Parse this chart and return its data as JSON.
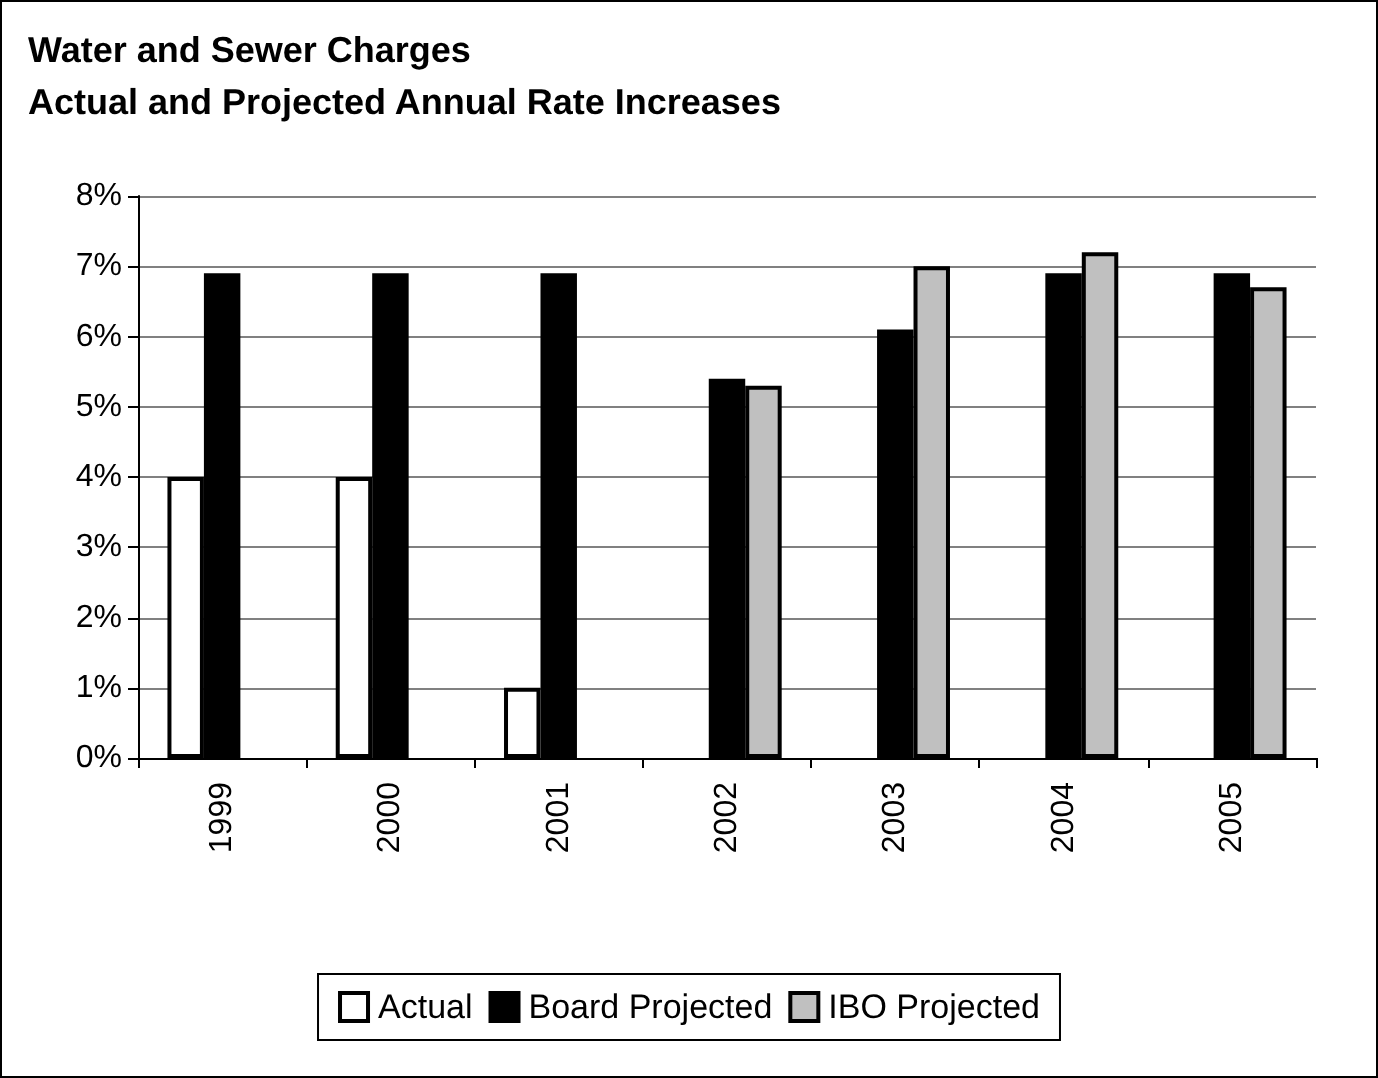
{
  "chart_data": {
    "type": "bar",
    "title": "Water and Sewer Charges\nActual and Projected Annual Rate Increases",
    "categories": [
      "1999",
      "2000",
      "2001",
      "2002",
      "2003",
      "2004",
      "2005"
    ],
    "series": [
      {
        "name": "Actual",
        "color": "#ffffff",
        "values": [
          4,
          4,
          1,
          null,
          null,
          null,
          null
        ]
      },
      {
        "name": "Board Projected",
        "color": "#000000",
        "values": [
          6.9,
          6.9,
          6.9,
          5.4,
          6.1,
          6.9,
          6.9
        ]
      },
      {
        "name": "IBO Projected",
        "color": "#c0c0c0",
        "values": [
          null,
          null,
          null,
          5.3,
          7.0,
          7.2,
          6.7
        ]
      }
    ],
    "ylim": [
      0,
      8
    ],
    "yticks": [
      {
        "value": 0,
        "label": "0%"
      },
      {
        "value": 1,
        "label": "1%"
      },
      {
        "value": 2,
        "label": "2%"
      },
      {
        "value": 3,
        "label": "3%"
      },
      {
        "value": 4,
        "label": "4%"
      },
      {
        "value": 5,
        "label": "5%"
      },
      {
        "value": 6,
        "label": "6%"
      },
      {
        "value": 7,
        "label": "7%"
      },
      {
        "value": 8,
        "label": "8%"
      }
    ],
    "grid": "y",
    "legend": "bottom"
  }
}
